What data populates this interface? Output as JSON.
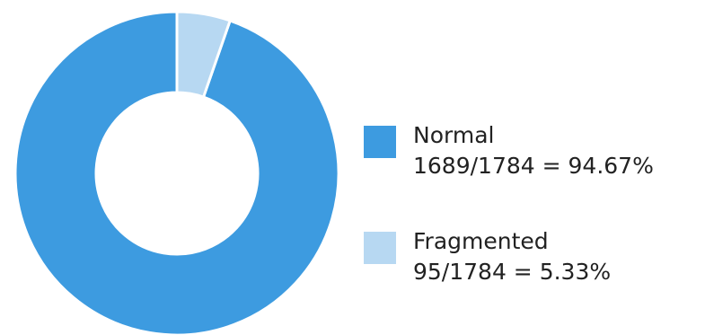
{
  "chart_data": {
    "type": "pie",
    "variant": "donut",
    "total": 1784,
    "slices": [
      {
        "name": "Normal",
        "count": 1689,
        "value": 94.67,
        "value_label": "1689/1784 = 94.67%",
        "color": "#3d9be0"
      },
      {
        "name": "Fragmented",
        "count": 95,
        "value": 5.33,
        "value_label": "95/1784 = 5.33%",
        "color": "#b7d8f2"
      }
    ],
    "start_angle": "top",
    "direction": "counterclockwise",
    "legend_position": "right"
  }
}
